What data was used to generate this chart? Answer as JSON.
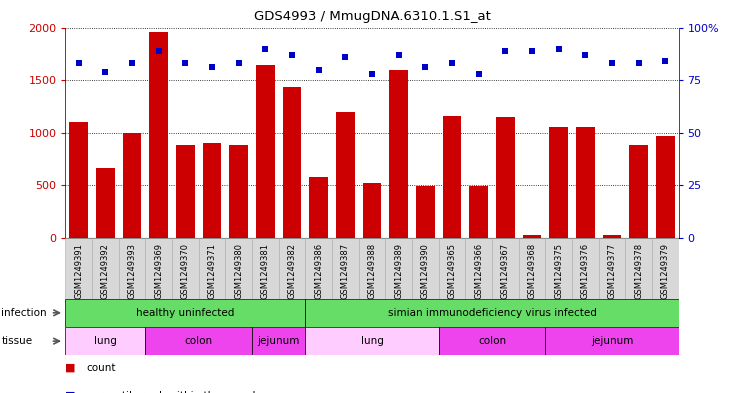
{
  "title": "GDS4993 / MmugDNA.6310.1.S1_at",
  "samples": [
    "GSM1249391",
    "GSM1249392",
    "GSM1249393",
    "GSM1249369",
    "GSM1249370",
    "GSM1249371",
    "GSM1249380",
    "GSM1249381",
    "GSM1249382",
    "GSM1249386",
    "GSM1249387",
    "GSM1249388",
    "GSM1249389",
    "GSM1249390",
    "GSM1249365",
    "GSM1249366",
    "GSM1249367",
    "GSM1249368",
    "GSM1249375",
    "GSM1249376",
    "GSM1249377",
    "GSM1249378",
    "GSM1249379"
  ],
  "counts": [
    1100,
    660,
    1000,
    1960,
    880,
    900,
    880,
    1640,
    1430,
    580,
    1200,
    520,
    1600,
    490,
    1160,
    490,
    1150,
    30,
    1050,
    1050,
    30,
    880,
    970
  ],
  "percentiles": [
    83,
    79,
    83,
    89,
    83,
    81,
    83,
    90,
    87,
    80,
    86,
    78,
    87,
    81,
    83,
    78,
    89,
    89,
    90,
    87,
    83,
    83,
    84
  ],
  "bar_color": "#cc0000",
  "dot_color": "#0000cc",
  "ylim_left": [
    0,
    2000
  ],
  "ylim_right": [
    0,
    100
  ],
  "yticks_left": [
    0,
    500,
    1000,
    1500,
    2000
  ],
  "yticks_right": [
    0,
    25,
    50,
    75,
    100
  ],
  "infection_groups": [
    {
      "label": "healthy uninfected",
      "start": 0,
      "end": 9,
      "color": "#66dd66"
    },
    {
      "label": "simian immunodeficiency virus infected",
      "start": 9,
      "end": 23,
      "color": "#66dd66"
    }
  ],
  "tissue_groups": [
    {
      "label": "lung",
      "start": 0,
      "end": 3,
      "color": "#ffccff"
    },
    {
      "label": "colon",
      "start": 3,
      "end": 7,
      "color": "#ee44ee"
    },
    {
      "label": "jejunum",
      "start": 7,
      "end": 9,
      "color": "#ee44ee"
    },
    {
      "label": "lung",
      "start": 9,
      "end": 14,
      "color": "#ffccff"
    },
    {
      "label": "colon",
      "start": 14,
      "end": 18,
      "color": "#ee44ee"
    },
    {
      "label": "jejunum",
      "start": 18,
      "end": 23,
      "color": "#ee44ee"
    }
  ],
  "tick_bg_color": "#d8d8d8",
  "infection_label": "infection",
  "tissue_label": "tissue"
}
